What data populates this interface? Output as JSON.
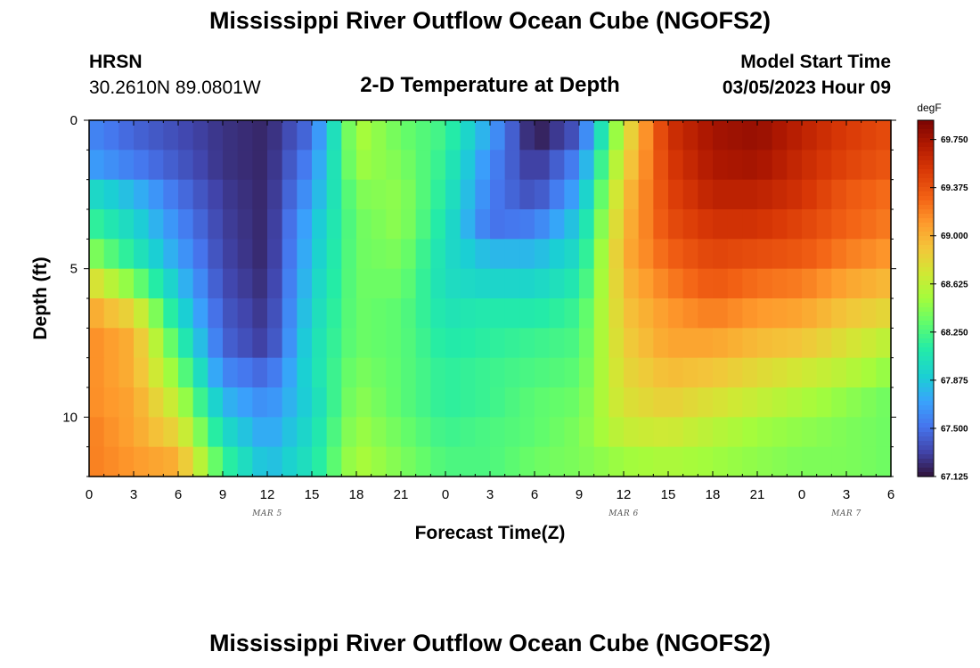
{
  "header": {
    "title": "Mississippi River Outflow Ocean Cube (NGOFS2)",
    "station_name": "HRSN",
    "station_coords": "30.2610N  89.0801W",
    "subtitle": "2-D Temperature at Depth",
    "model_start_label": "Model Start Time",
    "model_start_value": "03/05/2023 Hour 09"
  },
  "footer": {
    "title": "Mississippi River Outflow Ocean Cube (NGOFS2)"
  },
  "chart_data": {
    "type": "heatmap",
    "xlabel": "Forecast Time(Z)",
    "ylabel": "Depth (ft)",
    "x_hours": [
      0,
      54
    ],
    "x_tick_labels": [
      "0",
      "3",
      "6",
      "9",
      "12",
      "15",
      "18",
      "21",
      "0",
      "3",
      "6",
      "9",
      "12",
      "15",
      "18",
      "21",
      "0",
      "3",
      "6"
    ],
    "date_labels": [
      {
        "text": "MAR 5",
        "hour": 12
      },
      {
        "text": "MAR 6",
        "hour": 36
      },
      {
        "text": "MAR 7",
        "hour": 51
      }
    ],
    "ylim": [
      0,
      12
    ],
    "y_tick_labels": [
      0,
      5,
      10
    ],
    "colorbar": {
      "unit": "degF",
      "min": 67.125,
      "max": 69.9,
      "tick_values": [
        67.125,
        67.5,
        67.875,
        68.25,
        68.625,
        69.0,
        69.375,
        69.75
      ],
      "tick_labels": [
        "67.125",
        "67.500",
        "67.875",
        "68.250",
        "68.625",
        "69.000",
        "69.375",
        "69.750"
      ]
    },
    "depth_levels_ft": [
      0.5,
      1.5,
      2.5,
      3.5,
      4.5,
      5.5,
      6.5,
      7.5,
      8.5,
      9.5,
      10.5,
      11.5
    ],
    "keyframe_hours": [
      0,
      3,
      6,
      9,
      12,
      15,
      18,
      21,
      24,
      27,
      30,
      33,
      36,
      39,
      42,
      45,
      48,
      51,
      54
    ],
    "values": [
      [
        67.6,
        67.45,
        67.35,
        67.25,
        67.2,
        67.5,
        68.55,
        68.35,
        68.2,
        67.7,
        67.15,
        67.4,
        68.7,
        69.55,
        69.75,
        69.8,
        69.65,
        69.5,
        69.4
      ],
      [
        67.7,
        67.55,
        67.4,
        67.25,
        67.2,
        67.6,
        68.5,
        68.4,
        68.15,
        67.6,
        67.25,
        67.6,
        68.8,
        69.5,
        69.72,
        69.75,
        69.6,
        69.45,
        69.35
      ],
      [
        68.0,
        67.8,
        67.5,
        67.28,
        67.2,
        67.7,
        68.4,
        68.45,
        68.1,
        67.55,
        67.35,
        67.75,
        68.9,
        69.45,
        69.65,
        69.65,
        69.55,
        69.35,
        69.25
      ],
      [
        68.2,
        67.95,
        67.6,
        67.3,
        67.2,
        67.8,
        68.35,
        68.45,
        68.05,
        67.5,
        67.55,
        67.9,
        68.95,
        69.4,
        69.55,
        69.55,
        69.45,
        69.3,
        69.2
      ],
      [
        68.45,
        68.1,
        67.7,
        67.32,
        67.2,
        67.85,
        68.35,
        68.4,
        68.0,
        67.8,
        67.8,
        68.0,
        69.0,
        69.3,
        69.45,
        69.4,
        69.35,
        69.2,
        69.1
      ],
      [
        68.8,
        68.4,
        67.85,
        67.35,
        67.22,
        67.9,
        68.35,
        68.35,
        68.0,
        67.95,
        67.95,
        68.1,
        68.95,
        69.2,
        69.35,
        69.25,
        69.2,
        69.05,
        68.95
      ],
      [
        69.05,
        68.8,
        68.0,
        67.4,
        67.25,
        67.95,
        68.35,
        68.3,
        68.05,
        68.1,
        68.1,
        68.2,
        68.9,
        69.1,
        69.2,
        69.1,
        69.05,
        68.9,
        68.8
      ],
      [
        69.15,
        69.0,
        68.2,
        67.45,
        67.28,
        68.0,
        68.35,
        68.3,
        68.1,
        68.15,
        68.2,
        68.25,
        68.85,
        69.05,
        69.05,
        68.95,
        68.9,
        68.75,
        68.6
      ],
      [
        69.15,
        69.0,
        68.4,
        67.6,
        67.45,
        68.0,
        68.4,
        68.3,
        68.15,
        68.2,
        68.25,
        68.3,
        68.8,
        68.95,
        68.9,
        68.8,
        68.7,
        68.6,
        68.45
      ],
      [
        69.15,
        69.05,
        68.6,
        67.8,
        67.6,
        67.95,
        68.45,
        68.3,
        68.15,
        68.2,
        68.3,
        68.35,
        68.75,
        68.85,
        68.75,
        68.65,
        68.55,
        68.45,
        68.35
      ],
      [
        69.2,
        69.05,
        68.8,
        68.0,
        67.7,
        68.0,
        68.5,
        68.35,
        68.2,
        68.25,
        68.3,
        68.4,
        68.65,
        68.7,
        68.6,
        68.5,
        68.45,
        68.4,
        68.35
      ],
      [
        69.2,
        69.1,
        69.0,
        68.2,
        67.8,
        68.05,
        68.55,
        68.4,
        68.25,
        68.25,
        68.35,
        68.4,
        68.5,
        68.55,
        68.5,
        68.45,
        68.4,
        68.4,
        68.35
      ]
    ]
  }
}
